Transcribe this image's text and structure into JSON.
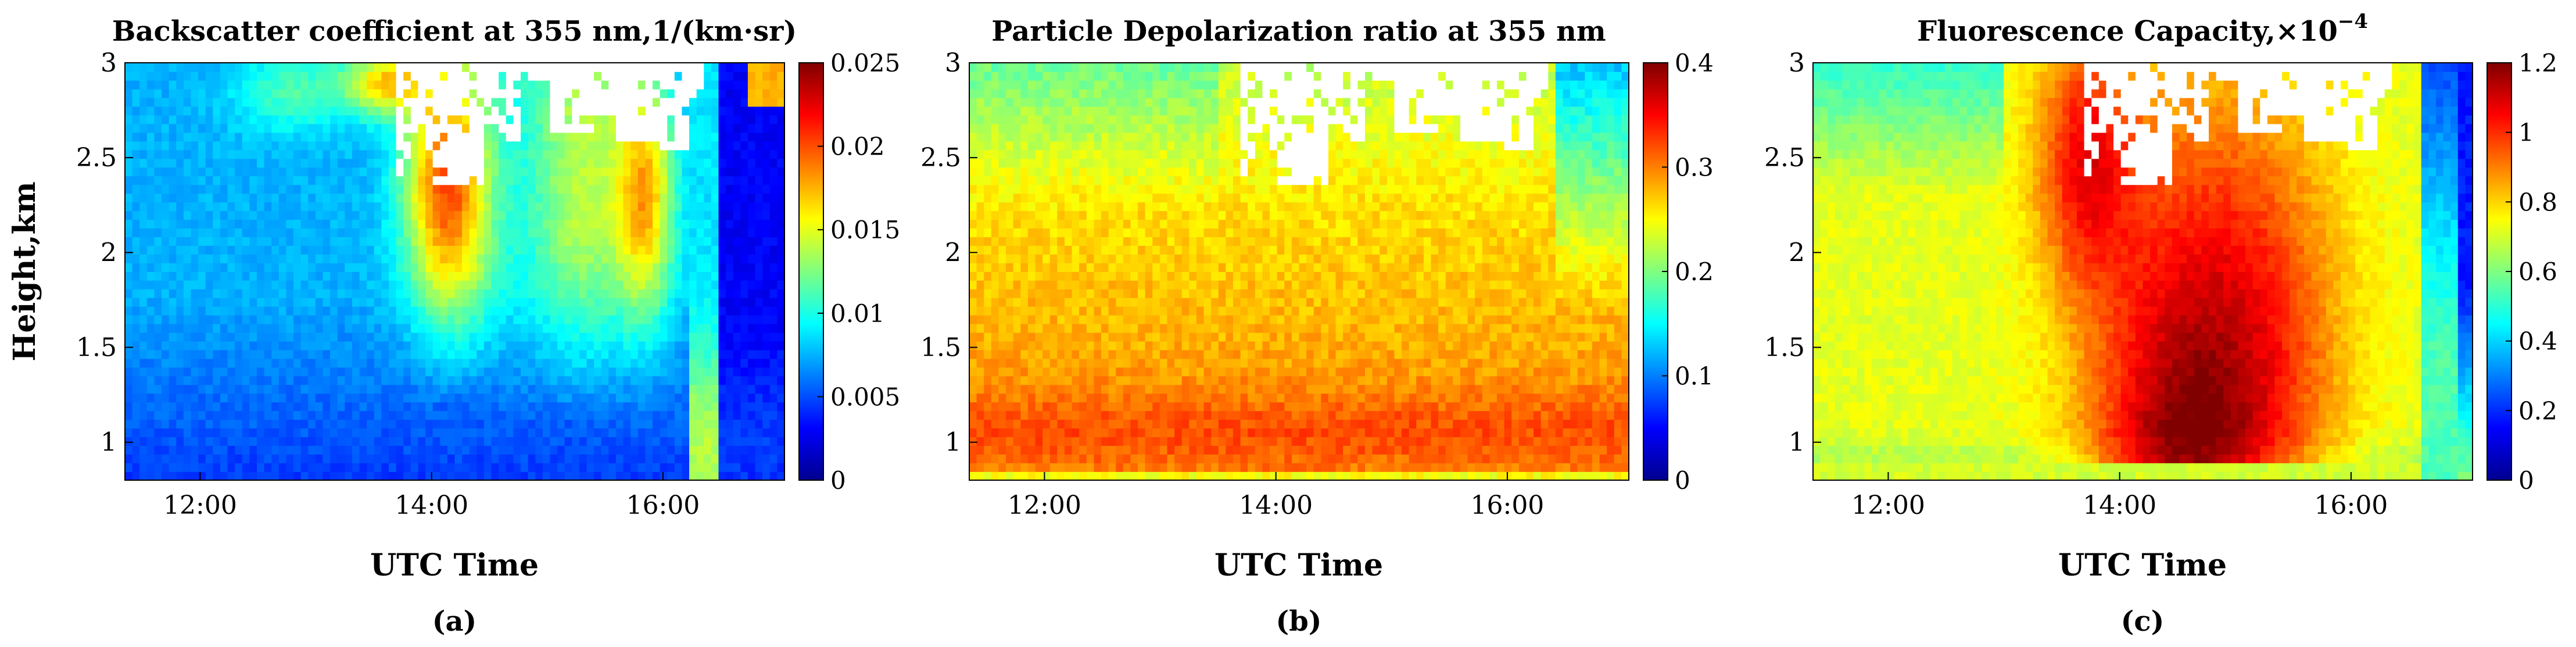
{
  "figure": {
    "y_axis_label": "Height,km"
  },
  "chart_data": [
    {
      "type": "heatmap",
      "panel_label": "(a)",
      "title": "Backscatter coefficient at 355 nm,1/(km·sr)",
      "xlabel": "UTC Time",
      "ylabel": "Height,km",
      "xlim": [
        11.35,
        17.05
      ],
      "ylim": [
        0.8,
        3.0
      ],
      "xticks": [
        12,
        14,
        16
      ],
      "xtick_labels": [
        "12:00",
        "14:00",
        "16:00"
      ],
      "yticks": [
        1,
        1.5,
        2,
        2.5,
        3
      ],
      "ytick_labels": [
        "1",
        "1.5",
        "2",
        "2.5",
        "3"
      ],
      "colorbar": {
        "range": [
          0,
          0.025
        ],
        "ticks": [
          0,
          0.005,
          0.01,
          0.015,
          0.02,
          0.025
        ],
        "tick_labels": [
          "0",
          "0.005",
          "0.01",
          "0.015",
          "0.02",
          "0.025"
        ]
      },
      "description_features": {
        "hot_regions_time_ranges_h": [
          [
            13.6,
            14.5
          ],
          [
            15.3,
            16.0
          ]
        ],
        "cloud_gap_above_km": 2.4
      }
    },
    {
      "type": "heatmap",
      "panel_label": "(b)",
      "title": "Particle Depolarization ratio at 355 nm",
      "xlabel": "UTC Time",
      "ylabel": "",
      "xlim": [
        11.35,
        17.05
      ],
      "ylim": [
        0.8,
        3.0
      ],
      "xticks": [
        12,
        14,
        16
      ],
      "xtick_labels": [
        "12:00",
        "14:00",
        "16:00"
      ],
      "yticks": [
        1,
        1.5,
        2,
        2.5,
        3
      ],
      "ytick_labels": [
        "1",
        "1.5",
        "2",
        "2.5",
        "3"
      ],
      "colorbar": {
        "range": [
          0,
          0.4
        ],
        "ticks": [
          0,
          0.1,
          0.2,
          0.3,
          0.4
        ],
        "tick_labels": [
          "0",
          "0.1",
          "0.2",
          "0.3",
          "0.4"
        ]
      }
    },
    {
      "type": "heatmap",
      "panel_label": "(c)",
      "title": "Fluorescence Capacity,×10",
      "title_superscript": "−4",
      "xlabel": "UTC Time",
      "ylabel": "",
      "xlim": [
        11.35,
        17.05
      ],
      "ylim": [
        0.8,
        3.0
      ],
      "xticks": [
        12,
        14,
        16
      ],
      "xtick_labels": [
        "12:00",
        "14:00",
        "16:00"
      ],
      "yticks": [
        1,
        1.5,
        2,
        2.5,
        3
      ],
      "ytick_labels": [
        "1",
        "1.5",
        "2",
        "2.5",
        "3"
      ],
      "colorbar": {
        "range": [
          0,
          1.2
        ],
        "ticks": [
          0,
          0.2,
          0.4,
          0.6,
          0.8,
          1.0,
          1.2
        ],
        "tick_labels": [
          "0",
          "0.2",
          "0.4",
          "0.6",
          "0.8",
          "1",
          "1.2"
        ]
      }
    }
  ]
}
